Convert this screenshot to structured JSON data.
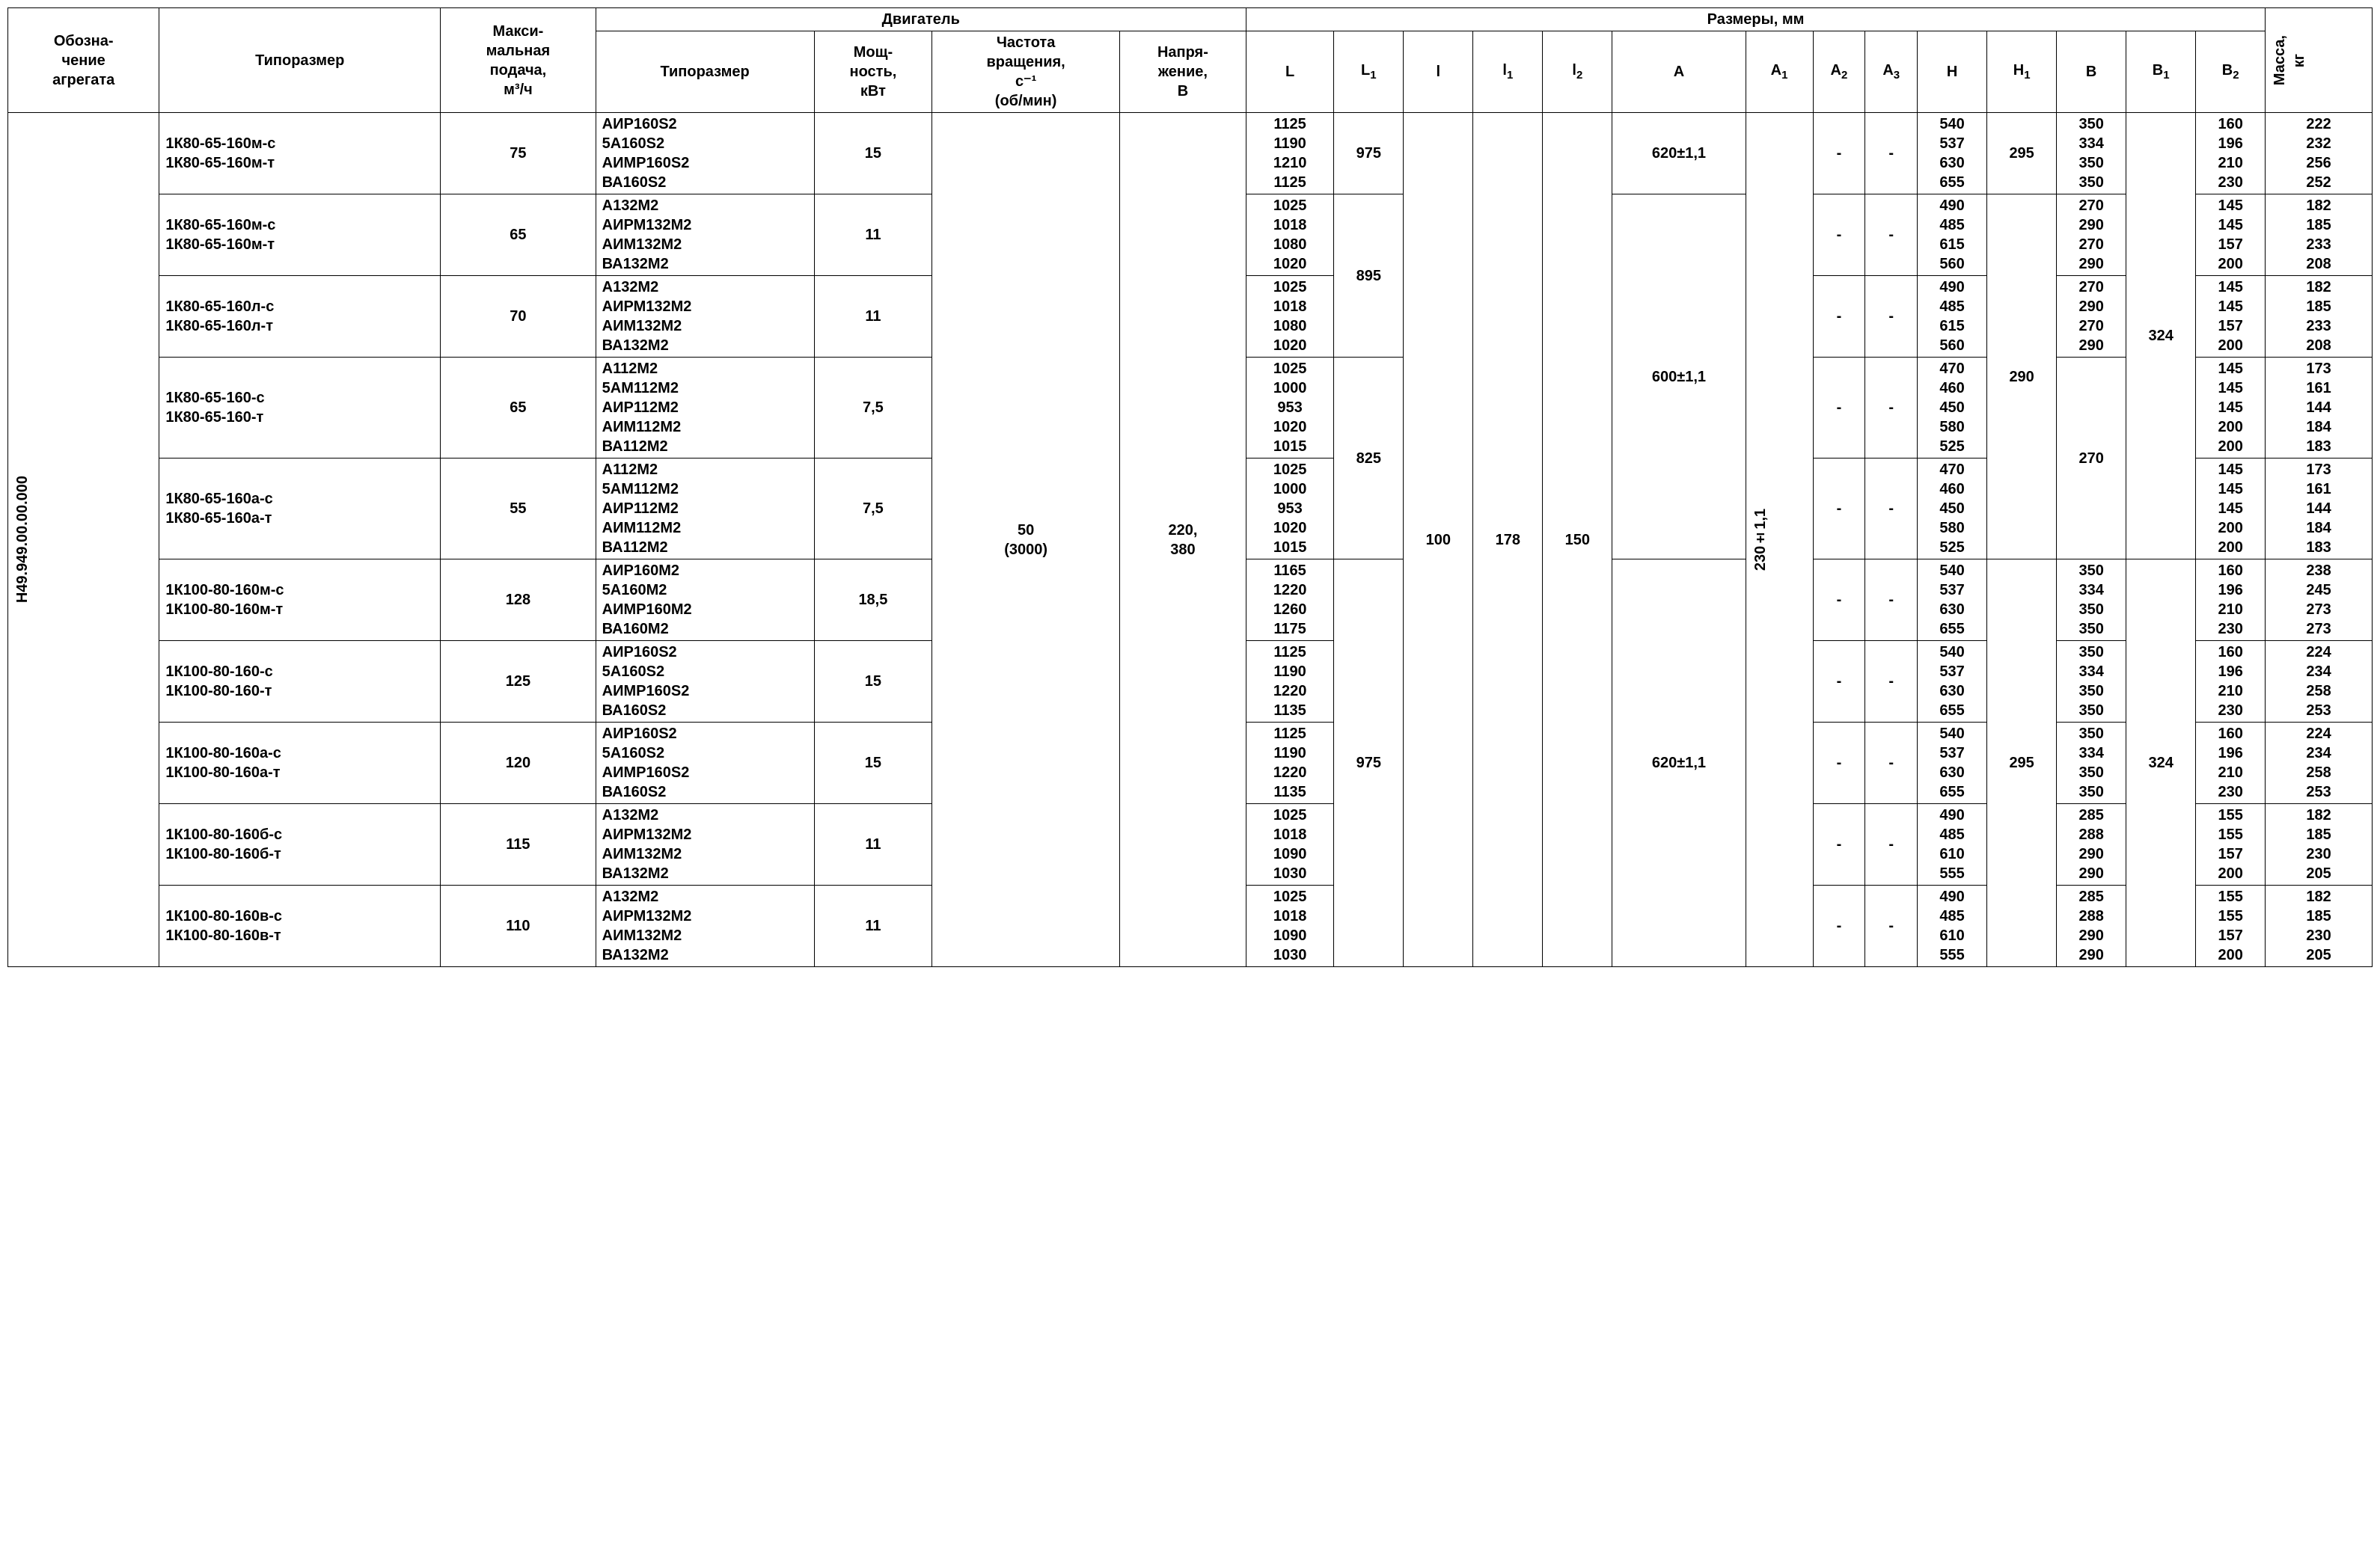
{
  "headers": {
    "unit_designation": "Обозна-\nчение\nагрегата",
    "type_size": "Типоразмер",
    "max_flow": "Макси-\nмальная\nподача,\nм³/ч",
    "engine": "Двигатель",
    "engine_type": "Типоразмер",
    "power": "Мощ-\nность,\nкВт",
    "rpm": "Частота\nвращения,\nс⁻¹\n(об/мин)",
    "voltage": "Напря-\nжение,\nВ",
    "dims": "Размеры, мм",
    "L": "L",
    "L1_html": "L<span class='sub'>1</span>",
    "I_col": "l",
    "I1_html": "l<span class='sub'>1</span>",
    "I2_html": "l<span class='sub'>2</span>",
    "A": "A",
    "A1_html": "A<span class='sub'>1</span>",
    "A2_html": "A<span class='sub'>2</span>",
    "A3_html": "A<span class='sub'>3</span>",
    "H": "H",
    "H1_html": "H<span class='sub'>1</span>",
    "B": "B",
    "B1_html": "B<span class='sub'>1</span>",
    "B2_html": "B<span class='sub'>2</span>",
    "mass": "Масса,\nкг"
  },
  "constants": {
    "designation": "Н49.949.00.00.000",
    "rpm": "50\n(3000)",
    "voltage": "220,\n380",
    "I_val": "100",
    "I1_val": "178",
    "I2_val": "150",
    "A1_val": "230±1,1",
    "B1_324_top": "324",
    "B1_324_bot": "324",
    "dash": "-"
  },
  "rows": [
    {
      "type": "1К80-65-160м-с\n1К80-65-160м-т",
      "flow": "75",
      "engine": "АИР160S2\n5А160S2\nАИМР160S2\nВА160S2",
      "power": "15",
      "L": "1125\n1190\n1210\n1125",
      "L1": "975",
      "A": "620±1,1",
      "H": "540\n537\n630\n655",
      "H1": "295",
      "B": "350\n334\n350\n350",
      "B2": "160\n196\n210\n230",
      "mass": "222\n232\n256\n252"
    },
    {
      "type": "1К80-65-160м-с\n1К80-65-160м-т",
      "flow": "65",
      "engine": "А132М2\nАИРМ132М2\nАИМ132М2\nВА132М2",
      "power": "11",
      "L": "1025\n1018\n1080\n1020",
      "L1_group": "895",
      "A_group": "600±1,1",
      "H": "490\n485\n615\n560",
      "H1_group": "290",
      "B": "270\n290\n270\n290",
      "B2": "145\n145\n157\n200",
      "mass": "182\n185\n233\n208"
    },
    {
      "type": "1К80-65-160л-с\n1К80-65-160л-т",
      "flow": "70",
      "engine": "А132М2\nАИРМ132М2\nАИМ132М2\nВА132М2",
      "power": "11",
      "L": "1025\n1018\n1080\n1020",
      "H": "490\n485\n615\n560",
      "B": "270\n290\n270\n290",
      "B2": "145\n145\n157\n200",
      "mass": "182\n185\n233\n208"
    },
    {
      "type": "1К80-65-160-с\n1К80-65-160-т",
      "flow": "65",
      "engine": "А112М2\n5АМ112М2\nАИР112М2\nАИМ112М2\nВА112М2",
      "power": "7,5",
      "L": "1025\n1000\n953\n1020\n1015",
      "L1_group": "825",
      "H": "470\n460\n450\n580\n525",
      "B_group": "270",
      "B2": "145\n145\n145\n200\n200",
      "mass": "173\n161\n144\n184\n183"
    },
    {
      "type": "1К80-65-160а-с\n1К80-65-160а-т",
      "flow": "55",
      "engine": "А112М2\n5АМ112М2\nАИР112М2\nАИМ112М2\nВА112М2",
      "power": "7,5",
      "L": "1025\n1000\n953\n1020\n1015",
      "H": "470\n460\n450\n580\n525",
      "B2": "145\n145\n145\n200\n200",
      "mass": "173\n161\n144\n184\n183"
    },
    {
      "type": "1К100-80-160м-с\n1К100-80-160м-т",
      "flow": "128",
      "engine": "АИР160М2\n5А160М2\nАИМР160М2\nВА160М2",
      "power": "18,5",
      "L": "1165\n1220\n1260\n1175",
      "L1_group": "975",
      "A_group": "620±1,1",
      "H": "540\n537\n630\n655",
      "H1_group": "295",
      "B": "350\n334\n350\n350",
      "B2": "160\n196\n210\n230",
      "mass": "238\n245\n273\n273"
    },
    {
      "type": "1К100-80-160-с\n1К100-80-160-т",
      "flow": "125",
      "engine": "АИР160S2\n5А160S2\nАИМР160S2\nВА160S2",
      "power": "15",
      "L": "1125\n1190\n1220\n1135",
      "H": "540\n537\n630\n655",
      "B": "350\n334\n350\n350",
      "B2": "160\n196\n210\n230",
      "mass": "224\n234\n258\n253"
    },
    {
      "type": "1К100-80-160а-с\n1К100-80-160а-т",
      "flow": "120",
      "engine": "АИР160S2\n5А160S2\nАИМР160S2\nВА160S2",
      "power": "15",
      "L": "1125\n1190\n1220\n1135",
      "H": "540\n537\n630\n655",
      "B": "350\n334\n350\n350",
      "B2": "160\n196\n210\n230",
      "mass": "224\n234\n258\n253"
    },
    {
      "type": "1К100-80-160б-с\n1К100-80-160б-т",
      "flow": "115",
      "engine": "А132М2\nАИРМ132М2\nАИМ132М2\nВА132М2",
      "power": "11",
      "L": "1025\n1018\n1090\n1030",
      "H": "490\n485\n610\n555",
      "B": "285\n288\n290\n290",
      "B2": "155\n155\n157\n200",
      "mass": "182\n185\n230\n205"
    },
    {
      "type": "1К100-80-160в-с\n1К100-80-160в-т",
      "flow": "110",
      "engine": "А132М2\nАИРМ132М2\nАИМ132М2\nВА132М2",
      "power": "11",
      "L": "1025\n1018\n1090\n1030",
      "H": "490\n485\n610\n555",
      "B": "285\n288\n290\n290",
      "B2": "155\n155\n157\n200",
      "mass": "182\n185\n230\n205"
    }
  ]
}
